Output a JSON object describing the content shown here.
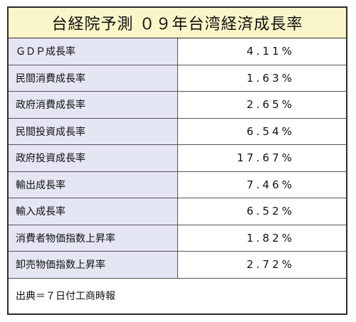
{
  "title": "台経院予測 ０９年台湾経済成長率",
  "rows": [
    {
      "label": "ＧＤＰ成長率",
      "value": "4.11%"
    },
    {
      "label": "民間消費成長率",
      "value": "1.63%"
    },
    {
      "label": "政府消費成長率",
      "value": "2.65%"
    },
    {
      "label": "民間投資成長率",
      "value": "6.54%"
    },
    {
      "label": "政府投資成長率",
      "value": "17.67%"
    },
    {
      "label": "輸出成長率",
      "value": "7.46%"
    },
    {
      "label": "輸入成長率",
      "value": "6.52%"
    },
    {
      "label": "消費者物価指数上昇率",
      "value": "1.82%"
    },
    {
      "label": "卸売物価指数上昇率",
      "value": "2.72%"
    }
  ],
  "source": "出典＝７日付工商時報",
  "colors": {
    "title_bg": "#fbf6c9",
    "label_bg": "#e5e6f4",
    "border": "#2b2b2b"
  }
}
